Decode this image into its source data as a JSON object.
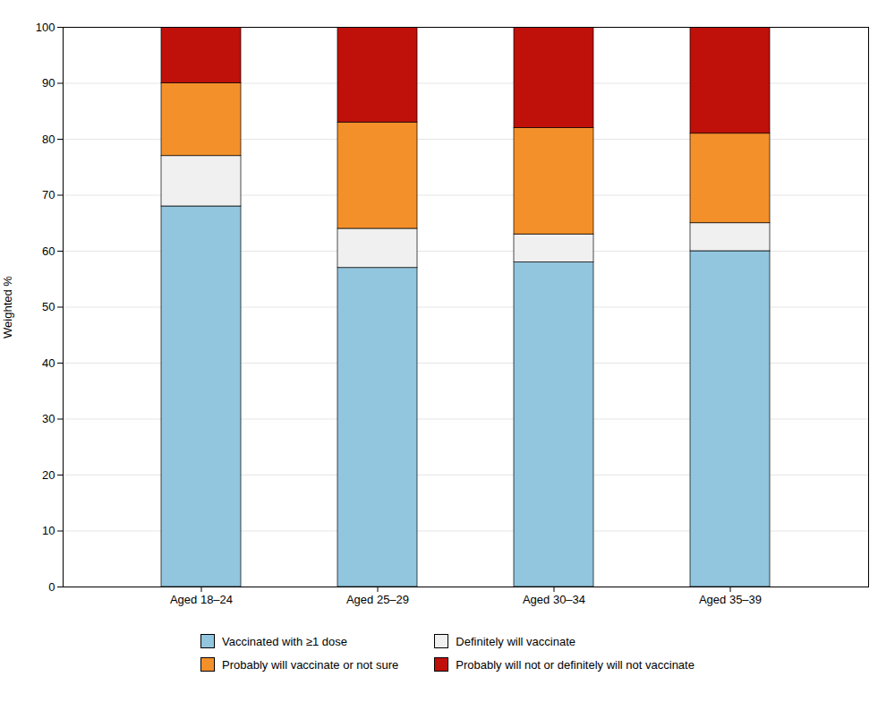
{
  "chart_data": {
    "type": "bar",
    "stacked": true,
    "categories": [
      "Aged 18–24",
      "Aged 25–29",
      "Aged 30–34",
      "Aged 35–39"
    ],
    "series": [
      {
        "name": "Vaccinated with ≥1 dose",
        "color": "#92C5DE",
        "values": [
          68,
          57,
          58,
          60
        ]
      },
      {
        "name": "Definitely will vaccinate",
        "color": "#F0F0F0",
        "values": [
          9,
          7,
          5,
          5
        ]
      },
      {
        "name": "Probably will vaccinate or not sure",
        "color": "#F4902A",
        "values": [
          13,
          19,
          19,
          16
        ]
      },
      {
        "name": "Probably will not or definitely will not vaccinate",
        "color": "#C0100A",
        "values": [
          10,
          17,
          18,
          19
        ]
      }
    ],
    "ylabel": "Weighted %",
    "ylim": [
      0,
      100
    ],
    "yticks": [
      0,
      10,
      20,
      30,
      40,
      50,
      60,
      70,
      80,
      90,
      100
    ],
    "grid": true,
    "legend": "bottom"
  }
}
